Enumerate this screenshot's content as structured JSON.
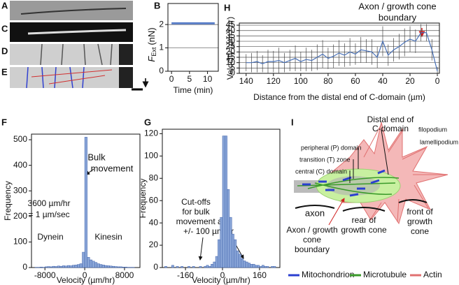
{
  "panels": [
    "A",
    "B",
    "C",
    "D",
    "E",
    "F",
    "G",
    "H",
    "I"
  ],
  "annotations": {
    "f_bulk": [
      "Bulk",
      "movement"
    ],
    "f_rate": [
      "3600 µm/hr",
      "= 1 µm/sec"
    ],
    "f_dynein": "Dynein",
    "f_kinesin": "Kinesin",
    "g_cutoff": [
      "Cut-offs",
      "for bulk",
      "movement are",
      "+/- 100 µm/hr"
    ],
    "h_boundary": [
      "Axon / growth cone",
      "boundary"
    ]
  },
  "diagram": {
    "labels": {
      "distal": [
        "Distal end of",
        "C-domain"
      ],
      "filopodium": "filopodium",
      "lamellipodium": "lamellipodium",
      "p_domain": "peripheral (P) domain",
      "t_zone": "transition (T) zone",
      "c_domain": "central (C) domain",
      "axon": "axon",
      "boundary": [
        "Axon / growth",
        "cone",
        "boundary"
      ],
      "rear": [
        "rear of",
        "growth cone"
      ],
      "front": [
        "front of",
        "growth",
        "cone"
      ]
    },
    "legend": [
      {
        "name": "Mitochondrion",
        "color": "#2b3fd0"
      },
      {
        "name": "Microtubule",
        "color": "#3a9a2a"
      },
      {
        "name": "Actin",
        "color": "#e07070"
      }
    ]
  },
  "chart_data": [
    {
      "type": "line",
      "xlabel": "Time (min)",
      "ylabel": "F",
      "ylabel_sub": "Ext",
      "ylabel_unit": "(nN)",
      "x": [
        0,
        1,
        2,
        3,
        4,
        5,
        6,
        7,
        8,
        9,
        10,
        11,
        12
      ],
      "values": [
        2.05,
        2.05,
        2.05,
        2.05,
        2.05,
        2.05,
        2.05,
        2.05,
        2.05,
        2.05,
        2.05,
        2.05,
        2.05
      ],
      "color": "#5a7fc8",
      "xlim": [
        -1,
        13
      ],
      "ylim": [
        0,
        2.9
      ],
      "xticks": [
        0,
        5,
        10
      ],
      "yticks": [
        0,
        1,
        2
      ],
      "grid": true
    },
    {
      "type": "line",
      "xlabel": "Distance from the distal end of C-domain (µm)",
      "ylabel": "Velocity (µm / hr)",
      "x": [
        140,
        136,
        132,
        128,
        124,
        120,
        116,
        112,
        108,
        104,
        100,
        96,
        92,
        88,
        84,
        80,
        76,
        72,
        68,
        64,
        60,
        56,
        52,
        48,
        44,
        40,
        36,
        32,
        28,
        24,
        20,
        16,
        12,
        8,
        4,
        0
      ],
      "values": [
        10,
        10,
        11,
        9,
        11,
        11,
        12,
        10,
        12,
        14,
        11,
        13,
        12,
        15,
        18,
        14,
        16,
        19,
        17,
        20,
        18,
        22,
        21,
        20,
        15,
        30,
        17,
        22,
        25,
        29,
        32,
        30,
        38,
        38,
        22,
        2
      ],
      "errors": [
        8,
        9,
        10,
        8,
        11,
        10,
        12,
        9,
        10,
        12,
        9,
        11,
        10,
        12,
        13,
        10,
        11,
        12,
        11,
        13,
        10,
        12,
        11,
        12,
        10,
        14,
        10,
        11,
        12,
        13,
        12,
        11,
        8,
        8,
        10,
        4
      ],
      "color": "#4a72b8",
      "xlim": [
        145,
        -1.5
      ],
      "ylim": [
        0,
        47
      ],
      "xticks": [
        140,
        120,
        100,
        80,
        60,
        40,
        20,
        0
      ],
      "yticks": [
        0,
        5,
        10,
        15,
        20,
        25,
        30,
        35,
        40,
        45
      ],
      "grid": true
    },
    {
      "type": "histogram",
      "xlabel": "Velocity (µm/hr)",
      "ylabel": "Frequency",
      "bins": [
        -10500,
        -10000,
        -9500,
        -9000,
        -8500,
        -8000,
        -7500,
        -7000,
        -6500,
        -6000,
        -5500,
        -5000,
        -4500,
        -4000,
        -3500,
        -3000,
        -2500,
        -2000,
        -1500,
        -1000,
        -500,
        0,
        500,
        1000,
        1500,
        2000,
        2500,
        3000,
        3500,
        4000,
        4500,
        5000,
        5500,
        6000,
        6500,
        7000,
        7500,
        8000,
        8500,
        9000,
        9500,
        10000,
        10500
      ],
      "values": [
        0,
        1,
        1,
        2,
        1,
        3,
        4,
        3,
        5,
        4,
        6,
        5,
        7,
        6,
        8,
        7,
        9,
        10,
        12,
        15,
        60,
        510,
        40,
        30,
        25,
        20,
        15,
        12,
        10,
        8,
        7,
        6,
        5,
        4,
        3,
        3,
        2,
        2,
        1,
        1,
        1,
        0
      ],
      "color": "#8aa6d8",
      "xlim": [
        -10700,
        11100
      ],
      "ylim": [
        0,
        522
      ],
      "xticks": [
        -8000,
        0,
        8000
      ],
      "yticks": [
        0,
        100,
        200,
        300,
        400,
        500
      ],
      "grid": false
    },
    {
      "type": "histogram",
      "xlabel": "Velocity (µm/hr)",
      "ylabel": "Frequency",
      "bins": [
        -260,
        -250,
        -240,
        -230,
        -220,
        -210,
        -200,
        -190,
        -180,
        -170,
        -160,
        -150,
        -140,
        -130,
        -120,
        -110,
        -100,
        -90,
        -80,
        -70,
        -60,
        -50,
        -40,
        -30,
        -20,
        -10,
        0,
        10,
        20,
        30,
        40,
        50,
        60,
        70,
        80,
        90,
        100,
        110,
        120,
        130,
        140,
        150,
        160,
        170,
        180,
        190,
        200,
        210,
        220,
        230,
        240
      ],
      "values": [
        0,
        1,
        0,
        0,
        2,
        0,
        1,
        0,
        1,
        0,
        0,
        1,
        0,
        1,
        0,
        0,
        1,
        0,
        1,
        2,
        1,
        3,
        5,
        10,
        25,
        45,
        118,
        118,
        70,
        45,
        30,
        25,
        15,
        12,
        8,
        6,
        5,
        4,
        3,
        3,
        2,
        2,
        1,
        2,
        1,
        1,
        0,
        1,
        1,
        0
      ],
      "color": "#8aa6d8",
      "xlim": [
        -260,
        248
      ],
      "ylim": [
        0,
        124
      ],
      "xticks": [
        -160,
        0,
        160
      ],
      "yticks": [
        0,
        20,
        40,
        60,
        80,
        100,
        120
      ],
      "grid": false
    }
  ]
}
